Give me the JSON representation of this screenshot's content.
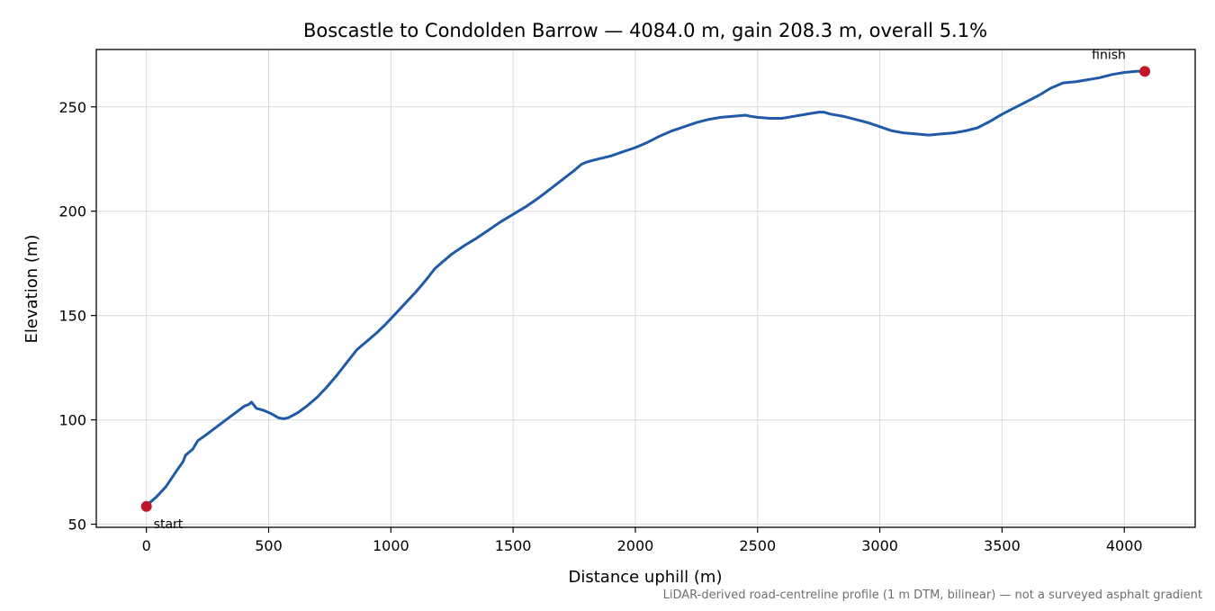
{
  "chart_data": {
    "type": "line",
    "title": "Boscastle to Condolden Barrow — 4084.0 m, gain 208.3 m, overall 5.1%",
    "xlabel": "Distance uphill (m)",
    "ylabel": "Elevation (m)",
    "xlim": [
      -205,
      4290
    ],
    "ylim": [
      48.5,
      277.5
    ],
    "xticks": [
      0,
      500,
      1000,
      1500,
      2000,
      2500,
      3000,
      3500,
      4000
    ],
    "yticks": [
      50,
      100,
      150,
      200,
      250
    ],
    "grid": true,
    "line_color": "#1f5aa8",
    "marker_color": "#c0182a",
    "series": [
      {
        "x": [
          0,
          40,
          80,
          120,
          150,
          160,
          190,
          210,
          240,
          280,
          320,
          360,
          400,
          420,
          430,
          450,
          480,
          510,
          540,
          560,
          580,
          620,
          660,
          700,
          740,
          780,
          820,
          860,
          900,
          940,
          980,
          1020,
          1060,
          1100,
          1140,
          1180,
          1200,
          1250,
          1300,
          1350,
          1400,
          1450,
          1500,
          1550,
          1600,
          1650,
          1700,
          1750,
          1780,
          1800,
          1830,
          1900,
          1950,
          2000,
          2050,
          2100,
          2150,
          2200,
          2250,
          2300,
          2350,
          2400,
          2450,
          2470,
          2500,
          2550,
          2600,
          2650,
          2700,
          2750,
          2770,
          2800,
          2850,
          2900,
          2950,
          3000,
          3050,
          3100,
          3150,
          3200,
          3250,
          3300,
          3350,
          3400,
          3450,
          3500,
          3550,
          3600,
          3650,
          3700,
          3750,
          3800,
          3850,
          3900,
          3950,
          4000,
          4050,
          4084
        ],
        "y": [
          59,
          63,
          68,
          75,
          80,
          83,
          86,
          90,
          92.5,
          96,
          99.5,
          103,
          106.5,
          107.5,
          108.5,
          105.5,
          104.5,
          103,
          101,
          100.5,
          101,
          103.5,
          107,
          111,
          116,
          121.5,
          127.5,
          133.5,
          137.5,
          141.5,
          146,
          151,
          156,
          161,
          166.5,
          172.5,
          174.5,
          179.5,
          183.5,
          187,
          191,
          195,
          198.5,
          202,
          206,
          210.5,
          215,
          219.5,
          222.5,
          223.5,
          224.5,
          226.5,
          228.5,
          230.5,
          233,
          236,
          238.5,
          240.5,
          242.5,
          244,
          245,
          245.5,
          246,
          245.5,
          245,
          244.5,
          244.5,
          245.5,
          246.5,
          247.5,
          247.5,
          246.5,
          245.5,
          244,
          242.5,
          240.5,
          238.5,
          237.5,
          237,
          236.5,
          237,
          237.5,
          238.5,
          240,
          243,
          246.5,
          249.5,
          252.5,
          255.5,
          259,
          261.5,
          262,
          263,
          264,
          265.5,
          266.5,
          267,
          267
        ]
      }
    ],
    "annotations": {
      "start": {
        "label": "start",
        "x": 0,
        "y": 58.5
      },
      "finish": {
        "label": "finish",
        "x": 4084,
        "y": 267
      }
    },
    "footnote": "LiDAR-derived road-centreline profile (1 m DTM, bilinear) — not a surveyed asphalt gradient"
  }
}
